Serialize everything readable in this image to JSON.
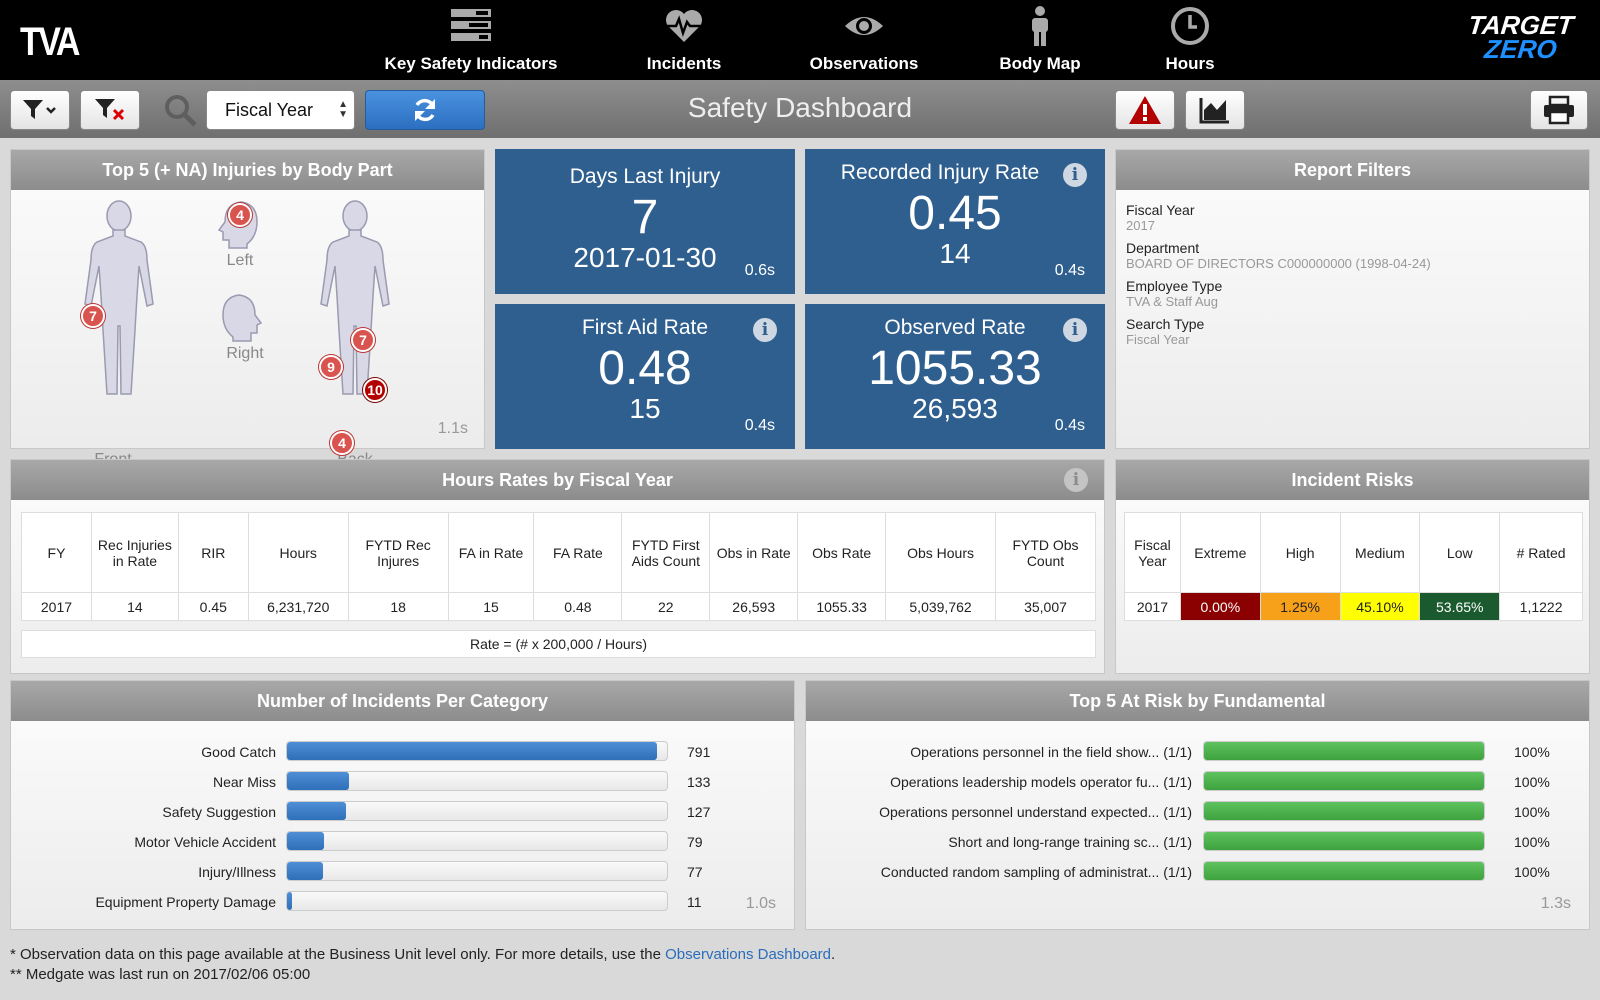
{
  "brand": {
    "logo": "TVA",
    "target": "TARGET",
    "zero": "ZERO"
  },
  "nav": [
    {
      "label": "Key Safety Indicators",
      "icon": "list-icon"
    },
    {
      "label": "Incidents",
      "icon": "heartbeat-icon"
    },
    {
      "label": "Observations",
      "icon": "eye-icon"
    },
    {
      "label": "Body Map",
      "icon": "person-icon"
    },
    {
      "label": "Hours",
      "icon": "clock-icon"
    }
  ],
  "toolbar": {
    "select_value": "Fiscal Year",
    "title": "Safety Dashboard"
  },
  "body_part": {
    "title": "Top 5 (+ NA) Injuries by Body Part",
    "front_label": "Front",
    "back_label": "Back",
    "left_label": "Left",
    "right_label": "Right",
    "badges": {
      "head_left": "4",
      "front_hand": "7",
      "back_hand_right": "7",
      "back_hand_left": "9",
      "back_leg": "10",
      "back_foot": "4"
    },
    "timing": "1.1s"
  },
  "kpis": {
    "days": {
      "title": "Days Last Injury",
      "value": "7",
      "sub": "2017-01-30",
      "time": "0.6s"
    },
    "rir": {
      "title": "Recorded Injury Rate",
      "value": "0.45",
      "sub": "14",
      "time": "0.4s"
    },
    "fa": {
      "title": "First Aid Rate",
      "value": "0.48",
      "sub": "15",
      "time": "0.4s"
    },
    "obs": {
      "title": "Observed Rate",
      "value": "1055.33",
      "sub": "26,593",
      "time": "0.4s"
    }
  },
  "filters": {
    "title": "Report Filters",
    "items": [
      {
        "label": "Fiscal Year",
        "value": "2017"
      },
      {
        "label": "Department",
        "value": "BOARD OF DIRECTORS C000000000 (1998-04-24)"
      },
      {
        "label": "Employee Type",
        "value": "TVA & Staff Aug"
      },
      {
        "label": "Search Type",
        "value": "Fiscal Year"
      }
    ]
  },
  "hours": {
    "title": "Hours Rates by Fiscal Year",
    "headers": [
      "FY",
      "Rec Injuries in Rate",
      "RIR",
      "Hours",
      "FYTD Rec Injures",
      "FA in Rate",
      "FA Rate",
      "FYTD First Aids Count",
      "Obs in Rate",
      "Obs Rate",
      "Obs Hours",
      "FYTD Obs Count"
    ],
    "row": [
      "2017",
      "14",
      "0.45",
      "6,231,720",
      "18",
      "15",
      "0.48",
      "22",
      "26,593",
      "1055.33",
      "5,039,762",
      "35,007"
    ],
    "note": "Rate = (# x 200,000 / Hours)"
  },
  "risks": {
    "title": "Incident Risks",
    "headers": [
      "Fiscal Year",
      "Extreme",
      "High",
      "Medium",
      "Low",
      "# Rated"
    ],
    "row": [
      "2017",
      "0.00%",
      "1.25%",
      "45.10%",
      "53.65%",
      "1,1222"
    ],
    "colors": {
      "extreme": "#8b0000",
      "high": "#f7a11b",
      "medium": "#ffff00",
      "low": "#1a5a2e"
    }
  },
  "incidents": {
    "title": "Number of Incidents Per Category",
    "timing": "1.0s",
    "max": 791,
    "items": [
      {
        "label": "Good Catch",
        "value": 791
      },
      {
        "label": "Near Miss",
        "value": 133
      },
      {
        "label": "Safety Suggestion",
        "value": 127
      },
      {
        "label": "Motor Vehicle Accident",
        "value": 79
      },
      {
        "label": "Injury/Illness",
        "value": 77
      },
      {
        "label": "Equipment Property Damage",
        "value": 11
      }
    ]
  },
  "atrisk": {
    "title": "Top 5 At Risk by Fundamental",
    "timing": "1.3s",
    "items": [
      {
        "label": "Operations personnel in the field show... (1/1)",
        "value": "100%",
        "pct": 100
      },
      {
        "label": "Operations leadership models operator fu... (1/1)",
        "value": "100%",
        "pct": 100
      },
      {
        "label": "Operations personnel understand expected... (1/1)",
        "value": "100%",
        "pct": 100
      },
      {
        "label": "Short and long-range training sc... (1/1)",
        "value": "100%",
        "pct": 100
      },
      {
        "label": "Conducted random sampling of administrat... (1/1)",
        "value": "100%",
        "pct": 100
      }
    ]
  },
  "footer": {
    "note1": "* Observation data on this page available at the Business Unit level only. For more details, use the",
    "link": "Observations Dashboard",
    "period": ".",
    "note2": "** Medgate was last run on 2017/02/06 05:00"
  }
}
